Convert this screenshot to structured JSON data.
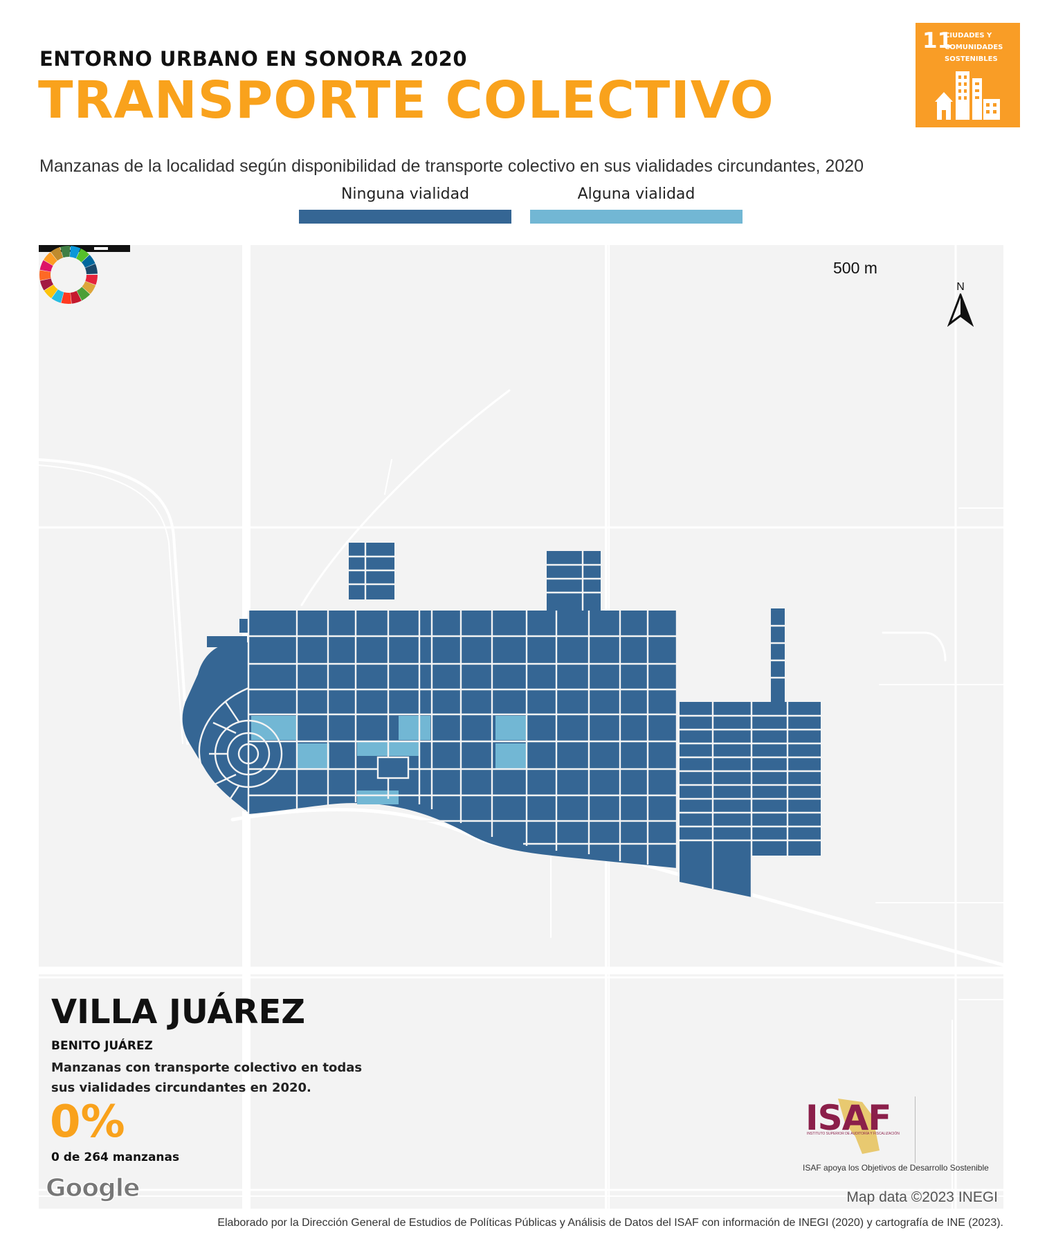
{
  "header": {
    "supertitle": "ENTORNO URBANO EN SONORA 2020",
    "title": "TRANSPORTE COLECTIVO",
    "subtitle": "Manzanas de la localidad según disponibilidad de  transporte colectivo en sus vialidades circundantes, 2020"
  },
  "sdg_badge": {
    "number": "11",
    "text": "Ciudades y comunidades sostenibles",
    "color": "#f99d26"
  },
  "legend": [
    {
      "label": "Ninguna vialidad",
      "color": "#356694"
    },
    {
      "label": "Alguna vialidad",
      "color": "#72b7d4"
    }
  ],
  "map": {
    "scale_label": "500 m",
    "north_label": "N",
    "place_name": "VILLA JUÁREZ",
    "municipality": "BENITO JUÁREZ",
    "stat_description": "Manzanas con transporte colectivo en todas sus vialidades circundantes en 2020.",
    "stat_percent": "0%",
    "stat_count": "0 de 264 manzanas",
    "basemap_logo": "Google",
    "map_credit": "Map data ©2023 INEGI",
    "background_color": "#f3f3f3",
    "road_color": "#ffffff"
  },
  "branding": {
    "isaf_logo": "ISAF",
    "isaf_subtitle": "INSTITUTO SUPERIOR DE AUDITORÍA Y FISCALIZACIÓN",
    "isaf_caption": "ISAF apoya los Objetivos de Desarrollo Sostenible",
    "isaf_color": "#8b1f4a"
  },
  "footer": "Elaborado por la Dirección General de Estudios de Políticas Públicas y Análisis de Datos del ISAF con información de INEGI (2020) y cartografía de INE (2023)."
}
